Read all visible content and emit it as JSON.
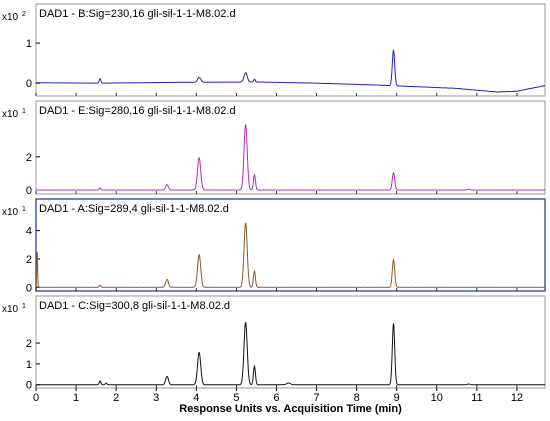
{
  "chart_data": {
    "type": "line",
    "xlabel": "Response Units vs. Acquisition Time (min)",
    "xlim": [
      0,
      12.7
    ],
    "x_ticks": [
      "0",
      "1",
      "2",
      "3",
      "4",
      "5",
      "6",
      "7",
      "8",
      "9",
      "10",
      "11",
      "12"
    ],
    "grid": false,
    "panels": [
      {
        "title": "DAD1 - B:Sig=230,16 gli-sil-1-1-M8.02.d",
        "scale_label": "x10",
        "scale_exp": "2",
        "y_ticks": [
          "1",
          "0"
        ],
        "ylim": [
          -0.27,
          1.45
        ],
        "color": "#1f1fc8",
        "baseline": [
          [
            0,
            0.01
          ],
          [
            1.6,
            0.0
          ],
          [
            3.5,
            0.02
          ],
          [
            5.5,
            0.03
          ],
          [
            7.0,
            0.0
          ],
          [
            8.6,
            -0.05
          ],
          [
            9.3,
            -0.08
          ],
          [
            10.5,
            -0.13
          ],
          [
            11.5,
            -0.22
          ],
          [
            12.0,
            -0.2
          ],
          [
            12.7,
            -0.06
          ]
        ],
        "peaks": [
          [
            1.6,
            0.11,
            0.02
          ],
          [
            4.07,
            0.12,
            0.04
          ],
          [
            5.23,
            0.23,
            0.04
          ],
          [
            5.45,
            0.07,
            0.02
          ],
          [
            8.92,
            0.88,
            0.03
          ]
        ]
      },
      {
        "title": "DAD1 - E:Sig=280,16 gli-sil-1-1-M8.02.d",
        "scale_label": "x10",
        "scale_exp": "1",
        "y_ticks": [
          "2",
          "0"
        ],
        "ylim": [
          -0.12,
          4.1
        ],
        "color": "#b030b0",
        "baseline": [
          [
            0,
            0.0
          ],
          [
            12.7,
            0.0
          ]
        ],
        "peaks": [
          [
            1.6,
            0.12,
            0.02
          ],
          [
            3.27,
            0.32,
            0.035
          ],
          [
            4.07,
            1.95,
            0.04
          ],
          [
            5.23,
            3.95,
            0.04
          ],
          [
            5.45,
            0.92,
            0.025
          ],
          [
            8.92,
            1.05,
            0.03
          ],
          [
            10.8,
            0.05,
            0.03
          ]
        ]
      },
      {
        "title": "DAD1 - A:Sig=289,4 gli-sil-1-1-M8.02.d",
        "scale_label": "x10",
        "scale_exp": "1",
        "y_ticks": [
          "4",
          "2",
          "0"
        ],
        "ylim": [
          -0.12,
          4.75
        ],
        "color": "#8a5a2a",
        "baseline": [
          [
            0,
            0.0
          ],
          [
            12.7,
            0.0
          ]
        ],
        "peaks": [
          [
            0.03,
            2.6,
            0.01
          ],
          [
            1.6,
            0.15,
            0.02
          ],
          [
            3.27,
            0.55,
            0.035
          ],
          [
            4.07,
            2.3,
            0.04
          ],
          [
            5.23,
            4.55,
            0.04
          ],
          [
            5.45,
            1.15,
            0.025
          ],
          [
            8.92,
            1.95,
            0.03
          ]
        ]
      },
      {
        "title": "DAD1 - C:Sig=300,8 gli-sil-1-1-M8.02.d",
        "scale_label": "x10",
        "scale_exp": "1",
        "y_ticks": [
          "2",
          "1",
          "0"
        ],
        "ylim": [
          -0.06,
          3.25
        ],
        "color": "#111111",
        "baseline": [
          [
            0,
            0.0
          ],
          [
            12.7,
            0.0
          ]
        ],
        "peaks": [
          [
            1.6,
            0.18,
            0.02
          ],
          [
            1.75,
            0.08,
            0.02
          ],
          [
            3.27,
            0.4,
            0.035
          ],
          [
            4.07,
            1.55,
            0.04
          ],
          [
            5.23,
            3.0,
            0.04
          ],
          [
            5.45,
            0.9,
            0.025
          ],
          [
            6.3,
            0.08,
            0.05
          ],
          [
            8.92,
            2.95,
            0.03
          ],
          [
            10.8,
            0.04,
            0.03
          ]
        ]
      }
    ]
  }
}
